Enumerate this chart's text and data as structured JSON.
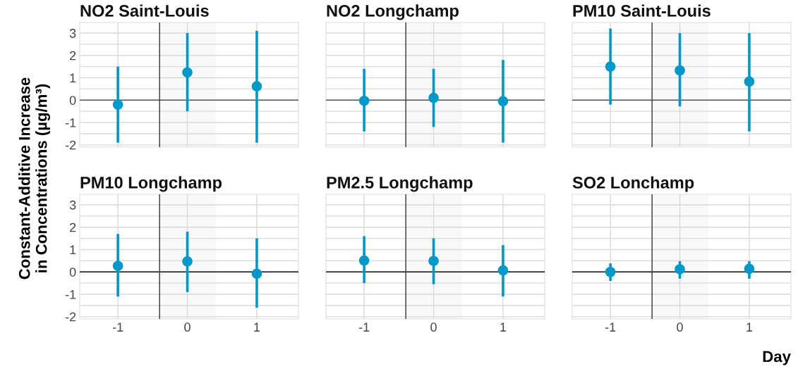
{
  "chart_data": [
    {
      "type": "scatter",
      "title": "NO2 Saint-Louis",
      "ylabel": "Constant-Additive Increase\nin Concentrations (µg/m³)",
      "x": [
        -1,
        0,
        1
      ],
      "values": [
        -0.2,
        1.24,
        0.62
      ],
      "errors": [
        [
          -1.9,
          1.5
        ],
        [
          -0.5,
          3.0
        ],
        [
          -1.9,
          3.1
        ]
      ],
      "color": "#0099cc",
      "marker": "circle",
      "xlim": [
        -1.55,
        1.6
      ],
      "ylim": [
        -2.1,
        3.47
      ],
      "xticks": [
        -1,
        0,
        1
      ],
      "yticks": [
        -2,
        -1,
        0,
        1,
        2,
        3
      ],
      "grid": true,
      "tick_labels": "y",
      "ref_lines": [
        {
          "axis": "y",
          "value": 0,
          "color": "#555555"
        },
        {
          "axis": "x",
          "value": -0.4,
          "color": "#444444"
        }
      ],
      "bands": [
        {
          "axis": "x",
          "from": -0.4,
          "to": 0.41,
          "color": "#f8f8f8"
        }
      ]
    },
    {
      "type": "scatter",
      "title": "NO2 Longchamp",
      "x": [
        -1,
        0,
        1
      ],
      "values": [
        -0.03,
        0.1,
        -0.05
      ],
      "errors": [
        [
          -1.4,
          1.4
        ],
        [
          -1.2,
          1.4
        ],
        [
          -1.9,
          1.8
        ]
      ],
      "color": "#0099cc",
      "marker": "circle",
      "xlim": [
        -1.55,
        1.6
      ],
      "ylim": [
        -2.1,
        3.47
      ],
      "xticks": [
        -1,
        0,
        1
      ],
      "yticks": [
        -2,
        -1,
        0,
        1,
        2,
        3
      ],
      "grid": true,
      "tick_labels": false,
      "ref_lines": [
        {
          "axis": "y",
          "value": 0,
          "color": "#555555"
        },
        {
          "axis": "x",
          "value": -0.4,
          "color": "#444444"
        }
      ],
      "bands": [
        {
          "axis": "x",
          "from": -0.4,
          "to": 0.41,
          "color": "#f8f8f8"
        }
      ]
    },
    {
      "type": "scatter",
      "title": "PM10 Saint-Louis",
      "x": [
        -1,
        0,
        1
      ],
      "values": [
        1.5,
        1.33,
        0.83
      ],
      "errors": [
        [
          -0.2,
          3.2
        ],
        [
          -0.28,
          3.0
        ],
        [
          -1.4,
          3.0
        ]
      ],
      "color": "#0099cc",
      "marker": "circle",
      "xlim": [
        -1.55,
        1.6
      ],
      "ylim": [
        -2.1,
        3.47
      ],
      "xticks": [
        -1,
        0,
        1
      ],
      "yticks": [
        -2,
        -1,
        0,
        1,
        2,
        3
      ],
      "grid": true,
      "tick_labels": false,
      "ref_lines": [
        {
          "axis": "y",
          "value": 0,
          "color": "#555555"
        },
        {
          "axis": "x",
          "value": -0.4,
          "color": "#444444"
        }
      ],
      "bands": [
        {
          "axis": "x",
          "from": -0.4,
          "to": 0.41,
          "color": "#f8f8f8"
        }
      ]
    },
    {
      "type": "scatter",
      "title": "PM10 Longchamp",
      "x": [
        -1,
        0,
        1
      ],
      "values": [
        0.27,
        0.47,
        -0.08
      ],
      "errors": [
        [
          -1.1,
          1.7
        ],
        [
          -0.9,
          1.8
        ],
        [
          -1.6,
          1.5
        ]
      ],
      "color": "#0099cc",
      "marker": "circle",
      "xlim": [
        -1.55,
        1.6
      ],
      "ylim": [
        -2.1,
        3.47
      ],
      "xticks": [
        -1,
        0,
        1
      ],
      "yticks": [
        -2,
        -1,
        0,
        1,
        2,
        3
      ],
      "grid": true,
      "ref_lines": [
        {
          "axis": "y",
          "value": 0,
          "color": "#111111"
        },
        {
          "axis": "x",
          "value": -0.4,
          "color": "#444444"
        }
      ],
      "bands": [
        {
          "axis": "x",
          "from": -0.4,
          "to": 0.41,
          "color": "#f8f8f8"
        }
      ]
    },
    {
      "type": "scatter",
      "title": "PM2.5 Longchamp",
      "x": [
        -1,
        0,
        1
      ],
      "values": [
        0.51,
        0.49,
        0.07
      ],
      "errors": [
        [
          -0.5,
          1.6
        ],
        [
          -0.55,
          1.5
        ],
        [
          -1.1,
          1.2
        ]
      ],
      "color": "#0099cc",
      "marker": "circle",
      "xlim": [
        -1.55,
        1.6
      ],
      "ylim": [
        -2.1,
        3.47
      ],
      "xticks": [
        -1,
        0,
        1
      ],
      "yticks": [
        -2,
        -1,
        0,
        1,
        2,
        3
      ],
      "grid": true,
      "tick_labels": "x",
      "ref_lines": [
        {
          "axis": "y",
          "value": 0,
          "color": "#111111"
        },
        {
          "axis": "x",
          "value": -0.4,
          "color": "#444444"
        }
      ],
      "bands": [
        {
          "axis": "x",
          "from": -0.4,
          "to": 0.41,
          "color": "#f8f8f8"
        }
      ]
    },
    {
      "type": "scatter",
      "title": "SO2 Lonchamp",
      "xlabel": "Day",
      "x": [
        -1,
        0,
        1
      ],
      "values": [
        0.0,
        0.12,
        0.14
      ],
      "errors": [
        [
          -0.4,
          0.38
        ],
        [
          -0.3,
          0.48
        ],
        [
          -0.3,
          0.48
        ]
      ],
      "color": "#0099cc",
      "marker": "circle",
      "xlim": [
        -1.55,
        1.6
      ],
      "ylim": [
        -2.1,
        3.47
      ],
      "xticks": [
        -1,
        0,
        1
      ],
      "yticks": [
        -2,
        -1,
        0,
        1,
        2,
        3
      ],
      "grid": true,
      "tick_labels": "x",
      "ref_lines": [
        {
          "axis": "y",
          "value": 0,
          "color": "#111111"
        },
        {
          "axis": "x",
          "value": -0.4,
          "color": "#444444"
        }
      ],
      "bands": [
        {
          "axis": "x",
          "from": -0.4,
          "to": 0.41,
          "color": "#f8f8f8"
        }
      ]
    }
  ]
}
